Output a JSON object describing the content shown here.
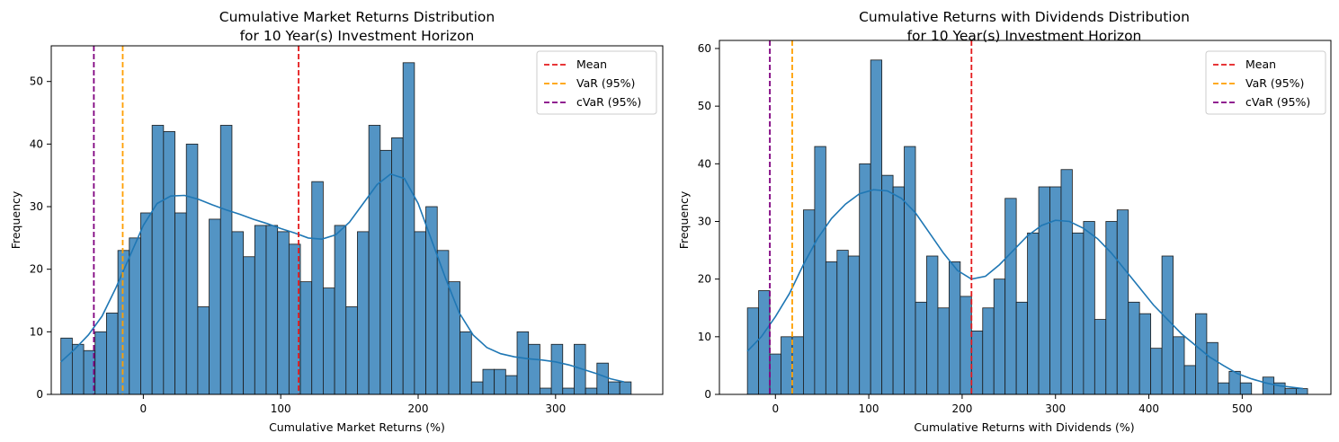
{
  "chart_data": [
    {
      "type": "bar",
      "title_line1": "Cumulative Market Returns Distribution",
      "title_line2": "for 10 Year(s) Investment Horizon",
      "xlabel": "Cumulative Market Returns (%)",
      "ylabel": "Frequency",
      "xlim": [
        -67,
        378
      ],
      "ylim": [
        0,
        55.7
      ],
      "xticks": [
        0,
        100,
        200,
        300
      ],
      "yticks": [
        0,
        10,
        20,
        30,
        40,
        50
      ],
      "bin_start": -60,
      "bin_width": 8.3,
      "counts": [
        9,
        8,
        7,
        10,
        13,
        23,
        25,
        29,
        43,
        42,
        29,
        40,
        14,
        28,
        43,
        26,
        22,
        27,
        27,
        26,
        24,
        18,
        34,
        17,
        27,
        14,
        26,
        43,
        39,
        41,
        53,
        26,
        30,
        23,
        18,
        10,
        2,
        4,
        4,
        3,
        10,
        8,
        1,
        8,
        1,
        8,
        1,
        5,
        2,
        2
      ],
      "kde_curve": [
        [
          -60,
          5.2
        ],
        [
          -50,
          7.2
        ],
        [
          -40,
          9.5
        ],
        [
          -30,
          12.5
        ],
        [
          -20,
          17
        ],
        [
          -10,
          22
        ],
        [
          0,
          27
        ],
        [
          10,
          30.5
        ],
        [
          20,
          31.7
        ],
        [
          30,
          31.8
        ],
        [
          40,
          31.2
        ],
        [
          50,
          30.3
        ],
        [
          60,
          29.5
        ],
        [
          70,
          28.8
        ],
        [
          80,
          28
        ],
        [
          90,
          27.3
        ],
        [
          100,
          26.5
        ],
        [
          110,
          25.8
        ],
        [
          120,
          25
        ],
        [
          130,
          24.8
        ],
        [
          140,
          25.5
        ],
        [
          150,
          27.5
        ],
        [
          160,
          30.5
        ],
        [
          170,
          33.5
        ],
        [
          180,
          35.2
        ],
        [
          190,
          34.5
        ],
        [
          200,
          30.5
        ],
        [
          210,
          24.5
        ],
        [
          220,
          18.5
        ],
        [
          230,
          13
        ],
        [
          240,
          9.5
        ],
        [
          250,
          7.5
        ],
        [
          260,
          6.5
        ],
        [
          270,
          6
        ],
        [
          280,
          5.7
        ],
        [
          290,
          5.5
        ],
        [
          300,
          5.2
        ],
        [
          310,
          4.7
        ],
        [
          320,
          4
        ],
        [
          330,
          3.3
        ],
        [
          340,
          2.5
        ],
        [
          350,
          2
        ]
      ],
      "vlines": [
        {
          "label": "Mean",
          "x": 113,
          "color": "#e41a1c"
        },
        {
          "label": "VaR (95%)",
          "x": -15,
          "color": "#ff9f00"
        },
        {
          "label": "cVaR (95%)",
          "x": -36,
          "color": "#800080"
        }
      ],
      "legend_position": "upper right",
      "bar_color": "#5394c4",
      "kde_color": "#1f77b4"
    },
    {
      "type": "bar",
      "title_line1": "Cumulative Returns with Dividends Distribution",
      "title_line2": "for 10 Year(s) Investment Horizon",
      "xlabel": "Cumulative Returns with Dividends (%)",
      "ylabel": "Frequency",
      "xlim": [
        -60,
        595
      ],
      "ylim": [
        0,
        61.4
      ],
      "xticks": [
        0,
        100,
        200,
        300,
        400,
        500
      ],
      "yticks": [
        0,
        10,
        20,
        30,
        40,
        50,
        60
      ],
      "bin_start": -30,
      "bin_width": 12,
      "counts": [
        15,
        18,
        7,
        10,
        10,
        32,
        43,
        23,
        25,
        24,
        40,
        58,
        38,
        36,
        43,
        16,
        24,
        15,
        23,
        17,
        11,
        15,
        20,
        34,
        16,
        28,
        36,
        36,
        39,
        28,
        30,
        13,
        30,
        32,
        16,
        14,
        8,
        24,
        10,
        5,
        14,
        9,
        2,
        4,
        2,
        0,
        3,
        2,
        1,
        1
      ],
      "kde_curve": [
        [
          -30,
          7.5
        ],
        [
          -15,
          10
        ],
        [
          0,
          13.5
        ],
        [
          15,
          17.5
        ],
        [
          30,
          22.5
        ],
        [
          45,
          27
        ],
        [
          60,
          30.5
        ],
        [
          75,
          33
        ],
        [
          90,
          34.8
        ],
        [
          105,
          35.5
        ],
        [
          120,
          35.3
        ],
        [
          135,
          34
        ],
        [
          150,
          31.5
        ],
        [
          165,
          28
        ],
        [
          180,
          24.5
        ],
        [
          195,
          21.5
        ],
        [
          210,
          20
        ],
        [
          225,
          20.5
        ],
        [
          240,
          22.5
        ],
        [
          255,
          25
        ],
        [
          270,
          27.5
        ],
        [
          285,
          29.3
        ],
        [
          300,
          30.2
        ],
        [
          315,
          30
        ],
        [
          330,
          28.8
        ],
        [
          345,
          27
        ],
        [
          360,
          24.5
        ],
        [
          375,
          21.5
        ],
        [
          390,
          18.5
        ],
        [
          405,
          15.5
        ],
        [
          420,
          13
        ],
        [
          435,
          10.5
        ],
        [
          450,
          8.5
        ],
        [
          465,
          6.5
        ],
        [
          480,
          5
        ],
        [
          495,
          3.6
        ],
        [
          510,
          2.7
        ],
        [
          525,
          2
        ],
        [
          540,
          1.5
        ],
        [
          555,
          1.2
        ],
        [
          565,
          1
        ]
      ],
      "vlines": [
        {
          "label": "Mean",
          "x": 210,
          "color": "#e41a1c"
        },
        {
          "label": "VaR (95%)",
          "x": 18,
          "color": "#ff9f00"
        },
        {
          "label": "cVaR (95%)",
          "x": -6,
          "color": "#800080"
        }
      ],
      "legend_position": "upper right",
      "bar_color": "#5394c4",
      "kde_color": "#1f77b4"
    }
  ]
}
